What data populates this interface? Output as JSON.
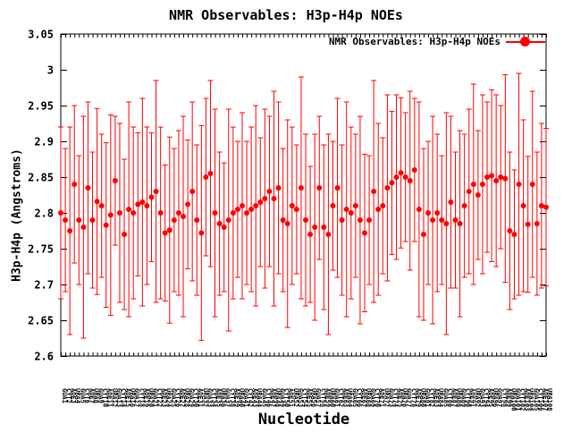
{
  "title": "NMR Observables: H3p-H4p NOEs",
  "legend": {
    "label": "NMR Observables: H3p-H4p NOEs"
  },
  "colors": {
    "series": "#ff0000",
    "axis": "#000000",
    "background": "#ffffff"
  },
  "chart_data": {
    "type": "scatter",
    "title": "NMR Observables: H3p-H4p NOEs",
    "xlabel": "Nucleotide",
    "ylabel": "H3p-H4p (Angstroms)",
    "ylim": [
      2.6,
      3.05
    ],
    "ytick_step": 0.05,
    "ytick_labels": [
      "2.6",
      "2.65",
      "2.7",
      "2.75",
      "2.8",
      "2.85",
      "2.9",
      "2.95",
      "3",
      "3.05"
    ],
    "grid": false,
    "legend_position": "top-right-inside",
    "marker": "filled-circle-with-errorbars",
    "categories": [
      "GUA1",
      "CYT2",
      "ADE3",
      "URA4",
      "GUA5",
      "CYT6",
      "ADE7",
      "URA8",
      "GUA9",
      "CYT10",
      "ADE11",
      "URA12",
      "GUA13",
      "CYT14",
      "ADE15",
      "URA16",
      "GUA17",
      "CYT18",
      "ADE19",
      "URA20",
      "GUA21",
      "CYT22",
      "ADE23",
      "URA24",
      "GUA25",
      "CYT26",
      "ADE27",
      "URA28",
      "GUA29",
      "CYT30",
      "ADE31",
      "URA32",
      "GUA33",
      "CYT34",
      "ADE35",
      "URA36",
      "GUA37",
      "CYT38",
      "ADE39",
      "URA40",
      "GUA41",
      "CYT42",
      "ADE43",
      "URA44",
      "GUA45",
      "CYT46",
      "ADE47",
      "URA48",
      "GUA49",
      "CYT50",
      "ADE51",
      "URA52",
      "GUA53",
      "CYT54",
      "ADE55",
      "URA56",
      "GUA57",
      "CYT58",
      "ADE59",
      "URA60",
      "GUA61",
      "CYT62",
      "ADE63",
      "URA64",
      "GUA65",
      "CYT66",
      "ADE67",
      "URA68",
      "GUA69",
      "CYT70",
      "ADE71",
      "URA72",
      "GUA73",
      "CYT74",
      "ADE75",
      "URA76",
      "GUA77",
      "CYT78",
      "ADE79",
      "URA80",
      "GUA81",
      "CYT82",
      "ADE83",
      "URA84",
      "GUA85",
      "CYT86",
      "ADE87",
      "URA88",
      "GUA89",
      "CYT90",
      "ADE91",
      "URA92",
      "GUA93",
      "CYT94",
      "ADE95",
      "URA96",
      "GUA97",
      "CYT98",
      "ADE99",
      "URA100",
      "GUA101",
      "CYT102",
      "ADE103",
      "URA104",
      "GUA105",
      "CYT106",
      "ADE107",
      "URA108"
    ],
    "series": [
      {
        "name": "NMR Observables: H3p-H4p NOEs",
        "values": [
          2.8,
          2.79,
          2.775,
          2.84,
          2.79,
          2.78,
          2.835,
          2.79,
          2.816,
          2.81,
          2.783,
          2.797,
          2.845,
          2.8,
          2.77,
          2.805,
          2.8,
          2.812,
          2.815,
          2.81,
          2.822,
          2.83,
          2.8,
          2.772,
          2.776,
          2.79,
          2.8,
          2.795,
          2.812,
          2.83,
          2.79,
          2.772,
          2.85,
          2.855,
          2.8,
          2.785,
          2.78,
          2.79,
          2.8,
          2.805,
          2.81,
          2.8,
          2.805,
          2.81,
          2.815,
          2.82,
          2.83,
          2.82,
          2.835,
          2.79,
          2.785,
          2.81,
          2.805,
          2.835,
          2.79,
          2.77,
          2.78,
          2.835,
          2.78,
          2.77,
          2.81,
          2.835,
          2.79,
          2.805,
          2.8,
          2.81,
          2.79,
          2.772,
          2.79,
          2.83,
          2.805,
          2.81,
          2.835,
          2.842,
          2.85,
          2.856,
          2.85,
          2.845,
          2.86,
          2.805,
          2.77,
          2.8,
          2.79,
          2.8,
          2.79,
          2.785,
          2.815,
          2.79,
          2.785,
          2.81,
          2.83,
          2.84,
          2.825,
          2.84,
          2.85,
          2.852,
          2.845,
          2.85,
          2.848,
          2.775,
          2.77,
          2.84,
          2.81,
          2.784,
          2.84,
          2.785,
          2.81,
          2.808
        ],
        "errors": [
          0.12,
          0.1,
          0.145,
          0.11,
          0.09,
          0.155,
          0.12,
          0.095,
          0.13,
          0.1,
          0.115,
          0.14,
          0.09,
          0.125,
          0.105,
          0.15,
          0.12,
          0.1,
          0.145,
          0.11,
          0.09,
          0.155,
          0.12,
          0.095,
          0.13,
          0.1,
          0.115,
          0.14,
          0.09,
          0.125,
          0.105,
          0.15,
          0.11,
          0.13,
          0.145,
          0.1,
          0.09,
          0.155,
          0.12,
          0.095,
          0.13,
          0.1,
          0.115,
          0.14,
          0.09,
          0.125,
          0.105,
          0.15,
          0.12,
          0.1,
          0.145,
          0.11,
          0.09,
          0.155,
          0.12,
          0.095,
          0.13,
          0.1,
          0.115,
          0.14,
          0.09,
          0.125,
          0.105,
          0.15,
          0.12,
          0.1,
          0.145,
          0.11,
          0.09,
          0.155,
          0.12,
          0.095,
          0.13,
          0.1,
          0.115,
          0.105,
          0.09,
          0.125,
          0.1,
          0.15,
          0.12,
          0.1,
          0.145,
          0.11,
          0.09,
          0.155,
          0.12,
          0.095,
          0.13,
          0.1,
          0.115,
          0.14,
          0.09,
          0.125,
          0.105,
          0.12,
          0.12,
          0.1,
          0.145,
          0.11,
          0.09,
          0.155,
          0.12,
          0.095,
          0.13,
          0.1,
          0.115,
          0.11
        ]
      }
    ]
  }
}
